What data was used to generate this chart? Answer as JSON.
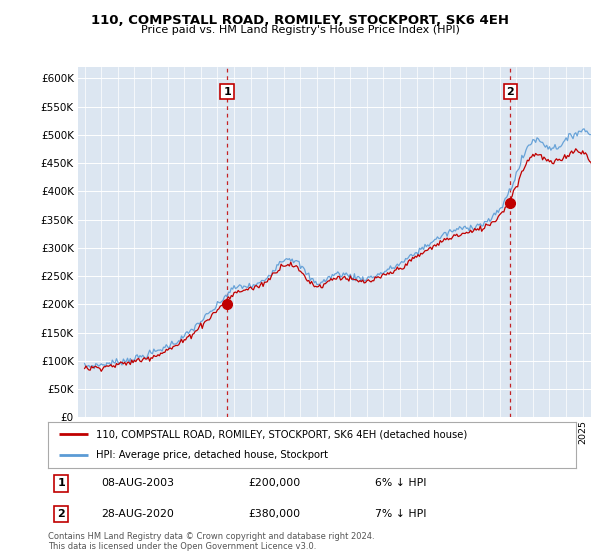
{
  "title": "110, COMPSTALL ROAD, ROMILEY, STOCKPORT, SK6 4EH",
  "subtitle": "Price paid vs. HM Land Registry's House Price Index (HPI)",
  "legend_line1": "110, COMPSTALL ROAD, ROMILEY, STOCKPORT, SK6 4EH (detached house)",
  "legend_line2": "HPI: Average price, detached house, Stockport",
  "transaction1_label": "1",
  "transaction1_date": "08-AUG-2003",
  "transaction1_price": "£200,000",
  "transaction1_hpi": "6% ↓ HPI",
  "transaction2_label": "2",
  "transaction2_date": "28-AUG-2020",
  "transaction2_price": "£380,000",
  "transaction2_hpi": "7% ↓ HPI",
  "footer": "Contains HM Land Registry data © Crown copyright and database right 2024.\nThis data is licensed under the Open Government Licence v3.0.",
  "hpi_color": "#5b9bd5",
  "price_color": "#c00000",
  "vline_color": "#c00000",
  "background_color": "#ffffff",
  "plot_bg_color": "#dce6f1",
  "grid_color": "#ffffff",
  "ylim": [
    0,
    620000
  ],
  "yticks": [
    0,
    50000,
    100000,
    150000,
    200000,
    250000,
    300000,
    350000,
    400000,
    450000,
    500000,
    550000,
    600000
  ],
  "transaction1_x": 2003.58,
  "transaction1_y": 200000,
  "transaction2_x": 2020.65,
  "transaction2_y": 380000,
  "xmin": 1994.6,
  "xmax": 2025.5,
  "hpi_annual": {
    "1995": 90000,
    "1996": 93000,
    "1997": 98000,
    "1998": 104000,
    "1999": 113000,
    "2000": 126000,
    "2001": 143000,
    "2002": 170000,
    "2003": 198000,
    "2004": 228000,
    "2005": 232000,
    "2006": 248000,
    "2007": 280000,
    "2008": 268000,
    "2009": 238000,
    "2010": 252000,
    "2011": 250000,
    "2012": 246000,
    "2013": 257000,
    "2014": 272000,
    "2015": 292000,
    "2016": 312000,
    "2017": 328000,
    "2018": 336000,
    "2019": 343000,
    "2020": 368000,
    "2021": 430000,
    "2022": 490000,
    "2023": 478000,
    "2024": 490000,
    "2025": 508000
  },
  "prop_annual": {
    "1995": 86000,
    "1996": 89000,
    "1997": 93000,
    "1998": 99000,
    "1999": 107000,
    "2000": 119000,
    "2001": 136000,
    "2002": 162000,
    "2003": 190000,
    "2004": 218000,
    "2005": 228000,
    "2006": 242000,
    "2007": 270000,
    "2008": 258000,
    "2009": 232000,
    "2010": 246000,
    "2011": 244000,
    "2012": 240000,
    "2013": 250000,
    "2014": 264000,
    "2015": 284000,
    "2016": 302000,
    "2017": 318000,
    "2018": 326000,
    "2019": 336000,
    "2020": 358000,
    "2021": 410000,
    "2022": 465000,
    "2023": 452000,
    "2024": 463000,
    "2025": 470000
  }
}
